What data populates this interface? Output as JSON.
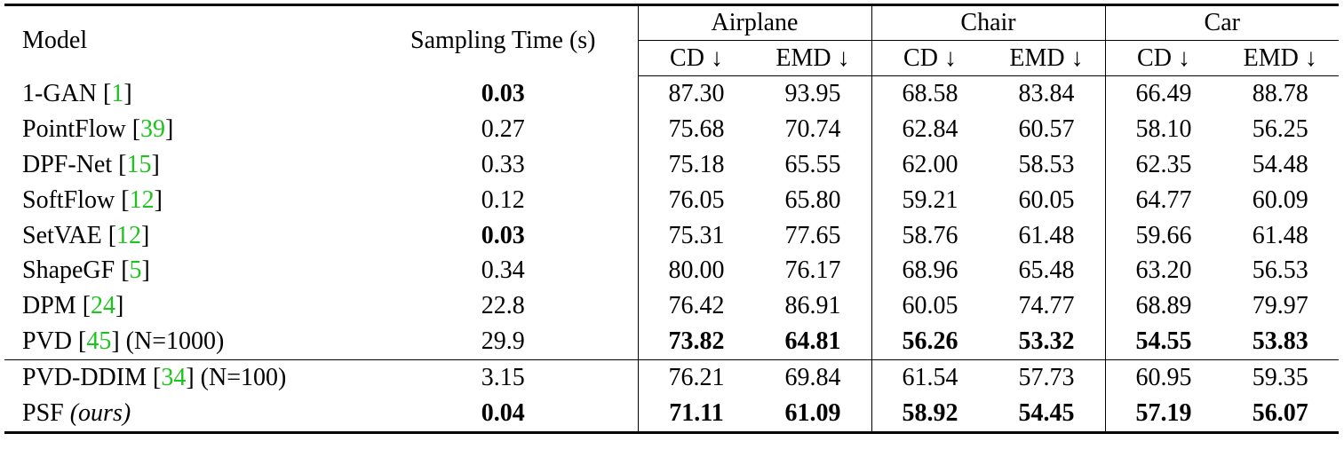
{
  "header": {
    "model": "Model",
    "sampling_time": "Sampling Time (s)",
    "groups": [
      "Airplane",
      "Chair",
      "Car"
    ],
    "metrics": [
      "CD ↓",
      "EMD ↓",
      "CD ↓",
      "EMD ↓",
      "CD ↓",
      "EMD ↓"
    ]
  },
  "rows": [
    {
      "name": "1-GAN [",
      "cite": "1",
      "suffix": "]",
      "time": "0.03",
      "time_bold": true,
      "vals": [
        "87.30",
        "93.95",
        "68.58",
        "83.84",
        "66.49",
        "88.78"
      ]
    },
    {
      "name": "PointFlow [",
      "cite": "39",
      "suffix": "]",
      "time": "0.27",
      "vals": [
        "75.68",
        "70.74",
        "62.84",
        "60.57",
        "58.10",
        "56.25"
      ]
    },
    {
      "name": "DPF-Net [",
      "cite": "15",
      "suffix": "]",
      "time": "0.33",
      "vals": [
        "75.18",
        "65.55",
        "62.00",
        "58.53",
        "62.35",
        "54.48"
      ]
    },
    {
      "name": "SoftFlow [",
      "cite": "12",
      "suffix": "]",
      "time": "0.12",
      "vals": [
        "76.05",
        "65.80",
        "59.21",
        "60.05",
        "64.77",
        "60.09"
      ]
    },
    {
      "name": "SetVAE [",
      "cite": "12",
      "suffix": "]",
      "time": "0.03",
      "time_bold": true,
      "vals": [
        "75.31",
        "77.65",
        "58.76",
        "61.48",
        "59.66",
        "61.48"
      ]
    },
    {
      "name": "ShapeGF [",
      "cite": "5",
      "suffix": "]",
      "time": "0.34",
      "vals": [
        "80.00",
        "76.17",
        "68.96",
        "65.48",
        "63.20",
        "56.53"
      ]
    },
    {
      "name": "DPM [",
      "cite": "24",
      "suffix": "]",
      "time": "22.8",
      "vals": [
        "76.42",
        "86.91",
        "60.05",
        "74.77",
        "68.89",
        "79.97"
      ]
    },
    {
      "name": "PVD [",
      "cite": "45",
      "suffix": "] (N=1000)",
      "time": "29.9",
      "vals": [
        "73.82",
        "64.81",
        "56.26",
        "53.32",
        "54.55",
        "53.83"
      ],
      "vals_bold": true
    },
    {
      "name": "PVD-DDIM [",
      "cite": "34",
      "suffix": "] (N=100)",
      "time": "3.15",
      "vals": [
        "76.21",
        "69.84",
        "61.54",
        "57.73",
        "60.95",
        "59.35"
      ]
    },
    {
      "name": "PSF ",
      "cite": "",
      "suffix": "",
      "ital": "(ours)",
      "time": "0.04",
      "time_bold": true,
      "vals": [
        "71.11",
        "61.09",
        "58.92",
        "54.45",
        "57.19",
        "56.07"
      ],
      "vals_bold": true
    }
  ]
}
